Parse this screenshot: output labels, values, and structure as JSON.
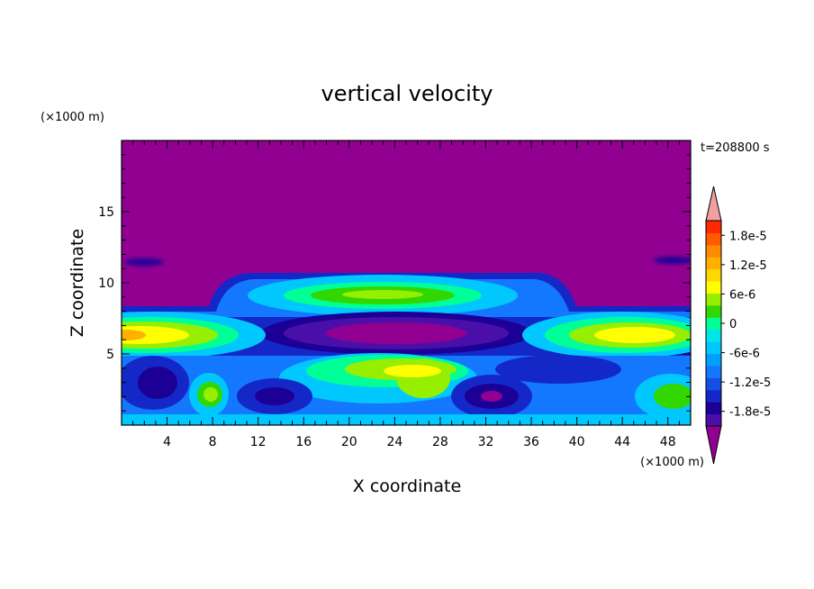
{
  "chart_data": {
    "type": "heatmap",
    "title": "vertical velocity",
    "time_label": "t=208800 s",
    "xlabel": "X coordinate",
    "ylabel": "Z coordinate",
    "x_unit": "(×1000 m)",
    "y_unit": "(×1000 m)",
    "xlim": [
      0,
      50
    ],
    "ylim": [
      0,
      20
    ],
    "x_ticks": [
      4,
      8,
      12,
      16,
      20,
      24,
      28,
      32,
      36,
      40,
      44,
      48
    ],
    "y_ticks": [
      5,
      10,
      15
    ],
    "colorbar": {
      "tick_labels": [
        "1.8e-5",
        "1.2e-5",
        "6e-6",
        "0",
        "-6e-6",
        "-1.2e-5",
        "-1.8e-5"
      ],
      "tick_values": [
        1.8e-05,
        1.2e-05,
        6e-06,
        0,
        -6e-06,
        -1.2e-05,
        -1.8e-05
      ],
      "range": [
        -2.1e-05,
        2.1e-05
      ],
      "colors": [
        "#920092",
        "#4a0fa8",
        "#1c0096",
        "#1428c8",
        "#1450e6",
        "#1478ff",
        "#00a0ff",
        "#00c8ff",
        "#00e6e6",
        "#00ff96",
        "#32d700",
        "#96ee00",
        "#ffff00",
        "#ffd700",
        "#ffb000",
        "#ff8c00",
        "#ff5a00",
        "#ff2800",
        "#f0a0a0"
      ]
    },
    "features": [
      {
        "x": 23,
        "z": 9.0,
        "value": 4e-06
      },
      {
        "x": 23,
        "z": 6.6,
        "value": -2.1e-05
      },
      {
        "x": 2,
        "z": 6.4,
        "value": 1.2e-05
      },
      {
        "x": 46,
        "z": 6.4,
        "value": 1e-05
      },
      {
        "x": 24,
        "z": 4.0,
        "value": 9e-06
      },
      {
        "x": 8,
        "z": 2.0,
        "value": 5e-06
      },
      {
        "x": 49,
        "z": 2.0,
        "value": 3e-06
      },
      {
        "x": 32,
        "z": 2.0,
        "value": -2e-05
      },
      {
        "x": 14,
        "z": 1.8,
        "value": -1.5e-05
      },
      {
        "x": 3,
        "z": 2.2,
        "value": -1.3e-05
      },
      {
        "x": 40,
        "z": 4.0,
        "value": -1.5e-05
      }
    ],
    "background_value": -2.1e-05,
    "grid": false,
    "legend_position": "right"
  }
}
